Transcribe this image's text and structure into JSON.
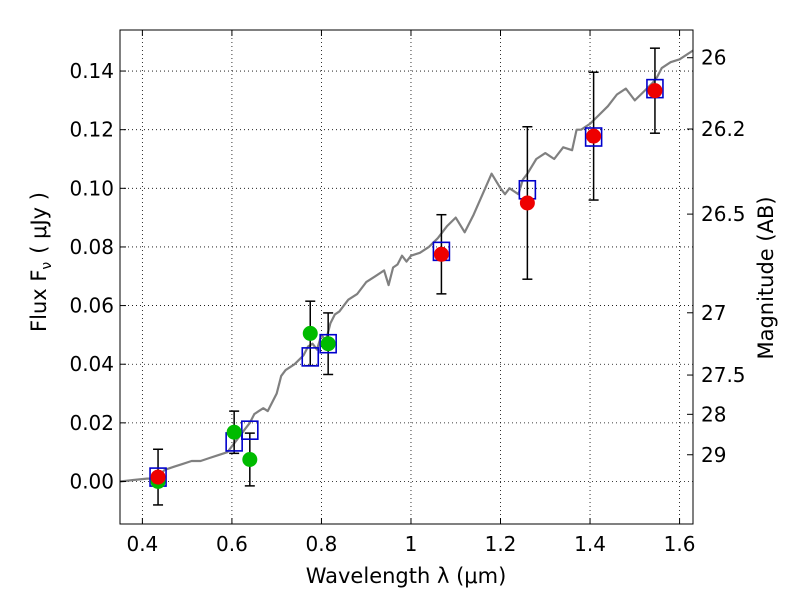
{
  "chart_data": {
    "type": "scatter",
    "xlabel": "Wavelength  λ (μm)",
    "ylabel": "Flux  F",
    "ylabel_sub": "ν",
    "ylabel_unit": "( μJy )",
    "y2label": "Magnitude (AB)",
    "xlim": [
      0.35,
      1.63
    ],
    "ylim": [
      -0.0145,
      0.154
    ],
    "grid": true,
    "x_ticks": [
      {
        "value": 0.4,
        "label": "0.4"
      },
      {
        "value": 0.6,
        "label": "0.6"
      },
      {
        "value": 0.8,
        "label": "0.8"
      },
      {
        "value": 1.0,
        "label": "1"
      },
      {
        "value": 1.2,
        "label": "1.2"
      },
      {
        "value": 1.4,
        "label": "1.4"
      },
      {
        "value": 1.6,
        "label": "1.6"
      }
    ],
    "y_ticks": [
      {
        "value": 0.0,
        "label": "0.00"
      },
      {
        "value": 0.02,
        "label": "0.02"
      },
      {
        "value": 0.04,
        "label": "0.04"
      },
      {
        "value": 0.06,
        "label": "0.06"
      },
      {
        "value": 0.08,
        "label": "0.08"
      },
      {
        "value": 0.1,
        "label": "0.10"
      },
      {
        "value": 0.12,
        "label": "0.12"
      },
      {
        "value": 0.14,
        "label": "0.14"
      }
    ],
    "mag_ticks": [
      {
        "value": 26,
        "label": "26"
      },
      {
        "value": 26.2,
        "label": "26.2"
      },
      {
        "value": 26.5,
        "label": "26.5"
      },
      {
        "value": 27,
        "label": "27"
      },
      {
        "value": 27.5,
        "label": "27.5"
      },
      {
        "value": 28,
        "label": "28"
      },
      {
        "value": 29,
        "label": "29"
      }
    ],
    "model_spectrum": {
      "color": "#808080",
      "x": [
        0.35,
        0.38,
        0.41,
        0.43,
        0.45,
        0.47,
        0.49,
        0.51,
        0.53,
        0.55,
        0.57,
        0.59,
        0.6,
        0.61,
        0.62,
        0.63,
        0.64,
        0.65,
        0.66,
        0.67,
        0.68,
        0.7,
        0.71,
        0.72,
        0.74,
        0.76,
        0.77,
        0.78,
        0.79,
        0.8,
        0.81,
        0.82,
        0.83,
        0.84,
        0.85,
        0.86,
        0.88,
        0.9,
        0.92,
        0.94,
        0.95,
        0.96,
        0.97,
        0.98,
        0.99,
        1.0,
        1.02,
        1.04,
        1.06,
        1.08,
        1.1,
        1.12,
        1.14,
        1.16,
        1.18,
        1.2,
        1.21,
        1.22,
        1.24,
        1.25,
        1.26,
        1.28,
        1.3,
        1.32,
        1.34,
        1.36,
        1.37,
        1.38,
        1.4,
        1.42,
        1.44,
        1.46,
        1.48,
        1.5,
        1.52,
        1.54,
        1.55,
        1.56,
        1.58,
        1.6,
        1.63
      ],
      "y": [
        0.0,
        0.0005,
        0.001,
        0.001,
        0.004,
        0.005,
        0.006,
        0.007,
        0.007,
        0.008,
        0.009,
        0.01,
        0.012,
        0.014,
        0.016,
        0.018,
        0.02,
        0.023,
        0.024,
        0.025,
        0.024,
        0.03,
        0.036,
        0.038,
        0.04,
        0.043,
        0.046,
        0.047,
        0.045,
        0.05,
        0.048,
        0.054,
        0.057,
        0.058,
        0.06,
        0.062,
        0.064,
        0.068,
        0.07,
        0.072,
        0.067,
        0.073,
        0.074,
        0.077,
        0.075,
        0.077,
        0.078,
        0.08,
        0.083,
        0.087,
        0.09,
        0.085,
        0.091,
        0.098,
        0.105,
        0.1,
        0.098,
        0.1,
        0.098,
        0.103,
        0.105,
        0.11,
        0.112,
        0.11,
        0.114,
        0.113,
        0.12,
        0.12,
        0.122,
        0.125,
        0.128,
        0.132,
        0.134,
        0.13,
        0.133,
        0.136,
        0.138,
        0.141,
        0.143,
        0.144,
        0.147
      ]
    },
    "series": [
      {
        "marker": "square-open",
        "color": "#0000cc",
        "points": [
          {
            "x": 0.435,
            "y": 0.0015
          },
          {
            "x": 0.605,
            "y": 0.0135
          },
          {
            "x": 0.64,
            "y": 0.0175
          },
          {
            "x": 0.775,
            "y": 0.0425
          },
          {
            "x": 0.815,
            "y": 0.047
          },
          {
            "x": 1.068,
            "y": 0.0785
          },
          {
            "x": 1.26,
            "y": 0.0995
          },
          {
            "x": 1.408,
            "y": 0.1175
          },
          {
            "x": 1.545,
            "y": 0.134
          }
        ]
      },
      {
        "marker": "circle",
        "color": "#00bb00",
        "points": [
          {
            "x": 0.435,
            "y": 0.0,
            "err": 0.0
          },
          {
            "x": 0.605,
            "y": 0.0168,
            "err": 0.0072
          },
          {
            "x": 0.64,
            "y": 0.0075,
            "err": 0.009
          },
          {
            "x": 0.775,
            "y": 0.0505,
            "err": 0.011
          },
          {
            "x": 0.815,
            "y": 0.047,
            "err": 0.0105
          }
        ]
      },
      {
        "marker": "circle",
        "color": "#ee0000",
        "points": [
          {
            "x": 0.435,
            "y": 0.0015,
            "err": 0.0095
          },
          {
            "x": 1.068,
            "y": 0.0775,
            "err": 0.0135
          },
          {
            "x": 1.26,
            "y": 0.095,
            "err": 0.026
          },
          {
            "x": 1.408,
            "y": 0.1178,
            "err": 0.0218
          },
          {
            "x": 1.545,
            "y": 0.1333,
            "err": 0.0145
          }
        ]
      }
    ]
  }
}
